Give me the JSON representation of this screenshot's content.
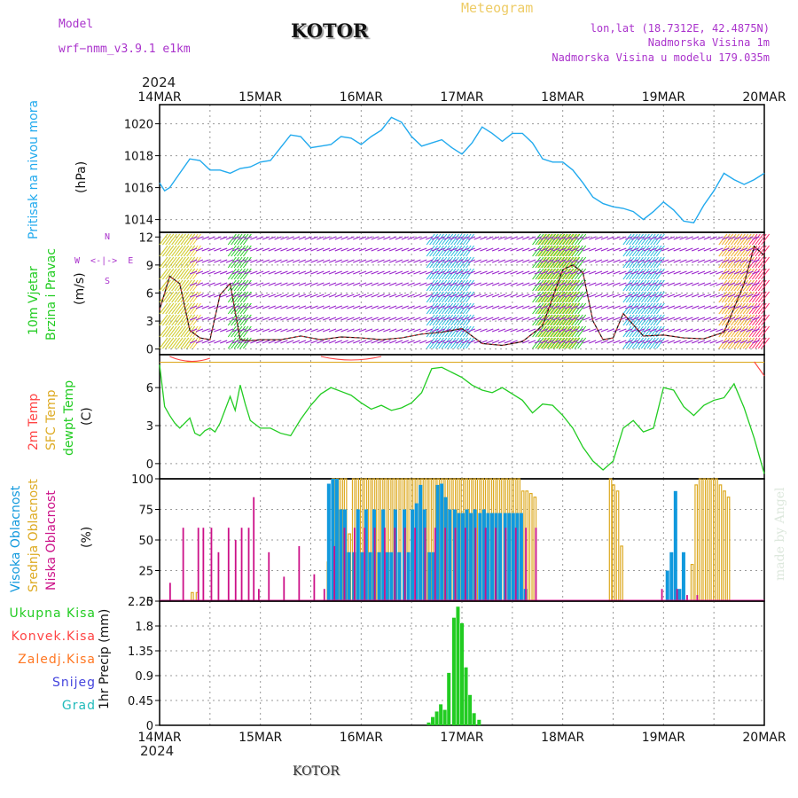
{
  "header": {
    "model_label": "Model",
    "model_name": "wrf−nmm_v3.9.1  e1km",
    "title": "KOTOR",
    "subtitle": "Meteogram",
    "lonlat": "lon,lat (18.7312E, 42.4875N)",
    "elevation": "Nadmorska Visina 1m",
    "model_elevation": "Nadmorska Visina u modelu 179.035m",
    "year_top": "2024",
    "year_bottom": "2024",
    "footer": "KOTOR",
    "credit": "made by Angel"
  },
  "colors": {
    "pressure": "#22aaee",
    "wind_total": "#22cc22",
    "temp2m": "#ff4444",
    "sfc": "#ddaa22",
    "dewpt": "#22cc22",
    "high_cloud": "#1199dd",
    "mid_cloud": "#ddaa22",
    "low_cloud": "#cc1188",
    "model_purple": "#aa33cc",
    "meteogram_orange": "#eecc66"
  },
  "date_ticks": [
    "14MAR",
    "15MAR",
    "16MAR",
    "17MAR",
    "18MAR",
    "19MAR",
    "20MAR"
  ],
  "panels": {
    "pressure": {
      "ylabel_a": "Pritisak na nivou mora",
      "unit": "(hPa)"
    },
    "wind": {
      "ylabel_a": "10m Vjetar",
      "ylabel_b": "Brzina i Pravac",
      "unit": "(m/s)",
      "compass_n": "N",
      "compass_s": "S",
      "compass_e": "E",
      "compass_w": "W",
      "compass_hint": "W  <-|->  E"
    },
    "temp": {
      "label_2m": "2m Temp",
      "label_sfc": "SFC Temp",
      "label_dewpt": "dewpt Temp",
      "unit": "(C)"
    },
    "cloud": {
      "label_high": "Visoka Oblacnost",
      "label_mid": "Srednja Oblacnost",
      "label_low": "Niska Oblacnost",
      "unit": "(%)"
    },
    "precip": {
      "ylabel": "1hr Precip (mm)",
      "legend": [
        {
          "label": "Ukupna Kisa",
          "color": "#22cc22"
        },
        {
          "label": "Konvek.Kisa",
          "color": "#ff4444"
        },
        {
          "label": "Zaledj.Kisa",
          "color": "#ff7722"
        },
        {
          "label": "Snijeg",
          "color": "#4444dd"
        },
        {
          "label": "Grad",
          "color": "#22bbbb"
        }
      ]
    }
  },
  "chart_data": [
    {
      "type": "line",
      "name": "pressure",
      "x_unit": "days after 14MAR 00UTC",
      "ylim": [
        1013.2,
        1021.2
      ],
      "yticks": [
        1014,
        1016,
        1018,
        1020
      ],
      "grid": true,
      "x": [
        0,
        0.05,
        0.1,
        0.2,
        0.3,
        0.4,
        0.5,
        0.6,
        0.7,
        0.8,
        0.9,
        1.0,
        1.1,
        1.2,
        1.3,
        1.4,
        1.5,
        1.6,
        1.7,
        1.8,
        1.9,
        2.0,
        2.1,
        2.2,
        2.3,
        2.4,
        2.5,
        2.6,
        2.7,
        2.8,
        2.9,
        3.0,
        3.1,
        3.2,
        3.3,
        3.4,
        3.5,
        3.6,
        3.7,
        3.8,
        3.9,
        4.0,
        4.1,
        4.2,
        4.3,
        4.4,
        4.5,
        4.6,
        4.7,
        4.8,
        4.9,
        5.0,
        5.1,
        5.2,
        5.3,
        5.4,
        5.5,
        5.6,
        5.7,
        5.8,
        5.9,
        6.0
      ],
      "values": [
        1016.3,
        1015.8,
        1016.0,
        1016.9,
        1017.8,
        1017.7,
        1017.1,
        1017.1,
        1016.9,
        1017.2,
        1017.3,
        1017.6,
        1017.7,
        1018.5,
        1019.3,
        1019.2,
        1018.5,
        1018.6,
        1018.7,
        1019.2,
        1019.1,
        1018.7,
        1019.2,
        1019.6,
        1020.4,
        1020.1,
        1019.2,
        1018.6,
        1018.8,
        1019.0,
        1018.5,
        1018.1,
        1018.8,
        1019.8,
        1019.4,
        1018.9,
        1019.4,
        1019.4,
        1018.8,
        1017.8,
        1017.6,
        1017.6,
        1017.1,
        1016.3,
        1015.4,
        1015.0,
        1014.8,
        1014.7,
        1014.5,
        1014.0,
        1014.5,
        1015.1,
        1014.6,
        1013.9,
        1013.8,
        1014.9,
        1015.8,
        1016.9,
        1016.5,
        1016.2,
        1016.5,
        1016.9
      ]
    },
    {
      "type": "line",
      "name": "wind",
      "x_unit": "days after 14MAR 00UTC",
      "ylim": [
        -0.6,
        12.5
      ],
      "yticks": [
        0,
        3,
        6,
        9,
        12
      ],
      "grid": true,
      "x": [
        0,
        0.1,
        0.2,
        0.3,
        0.4,
        0.5,
        0.6,
        0.7,
        0.8,
        0.9,
        1.0,
        1.2,
        1.4,
        1.6,
        1.8,
        2.0,
        2.2,
        2.4,
        2.6,
        2.8,
        3.0,
        3.2,
        3.4,
        3.6,
        3.8,
        4.0,
        4.1,
        4.2,
        4.3,
        4.4,
        4.5,
        4.6,
        4.8,
        5.0,
        5.2,
        5.4,
        5.6,
        5.8,
        5.9,
        6.0
      ],
      "values": [
        4.2,
        7.8,
        7.0,
        2.0,
        1.2,
        1.0,
        5.8,
        7.0,
        1.0,
        0.9,
        1.0,
        1.0,
        1.4,
        1.0,
        1.3,
        1.2,
        1.0,
        1.2,
        1.6,
        1.8,
        2.2,
        0.6,
        0.4,
        0.8,
        2.5,
        8.5,
        9.0,
        8.2,
        3.0,
        1.0,
        1.2,
        3.8,
        1.4,
        1.5,
        1.2,
        1.1,
        1.8,
        7.0,
        11.0,
        10.0
      ]
    },
    {
      "type": "line",
      "name": "dewpt",
      "x_unit": "days after 14MAR 00UTC",
      "ylim": [
        -1.2,
        8.6
      ],
      "yticks": [
        0,
        3,
        6
      ],
      "grid": true,
      "x": [
        0,
        0.05,
        0.1,
        0.15,
        0.2,
        0.3,
        0.35,
        0.4,
        0.45,
        0.5,
        0.55,
        0.6,
        0.7,
        0.75,
        0.8,
        0.85,
        0.9,
        1.0,
        1.1,
        1.2,
        1.3,
        1.4,
        1.5,
        1.6,
        1.7,
        1.8,
        1.9,
        2.0,
        2.1,
        2.2,
        2.3,
        2.4,
        2.5,
        2.6,
        2.7,
        2.8,
        2.9,
        3.0,
        3.1,
        3.2,
        3.3,
        3.4,
        3.5,
        3.6,
        3.7,
        3.8,
        3.9,
        4.0,
        4.1,
        4.2,
        4.3,
        4.4,
        4.5,
        4.6,
        4.7,
        4.8,
        4.9,
        5.0,
        5.1,
        5.2,
        5.3,
        5.4,
        5.5,
        5.6,
        5.7,
        5.8,
        5.9,
        6.0
      ],
      "values": [
        7.8,
        4.5,
        3.8,
        3.2,
        2.8,
        3.6,
        2.4,
        2.2,
        2.6,
        2.8,
        2.5,
        3.2,
        5.3,
        4.2,
        6.2,
        4.7,
        3.4,
        2.8,
        2.8,
        2.4,
        2.2,
        3.5,
        4.6,
        5.5,
        6.0,
        5.7,
        5.4,
        4.8,
        4.3,
        4.6,
        4.2,
        4.4,
        4.8,
        5.6,
        7.5,
        7.6,
        7.2,
        6.8,
        6.2,
        5.8,
        5.6,
        6.0,
        5.5,
        5.0,
        4.0,
        4.7,
        4.6,
        3.8,
        2.8,
        1.3,
        0.2,
        -0.5,
        0.2,
        2.8,
        3.4,
        2.5,
        2.8,
        6.0,
        5.8,
        4.5,
        3.8,
        4.6,
        5.0,
        5.2,
        6.3,
        4.4,
        2.0,
        -0.8
      ]
    },
    {
      "type": "line",
      "name": "sfc",
      "x_unit": "days after 14MAR 00UTC",
      "ylim": [
        -1.2,
        8.6
      ],
      "x": [
        0,
        6
      ],
      "values": [
        8.0,
        8.0
      ]
    },
    {
      "type": "bar",
      "name": "cloud",
      "x_unit": "days after 14MAR 00UTC",
      "ylim": [
        0,
        100
      ],
      "yticks": [
        0,
        25,
        50,
        75,
        100
      ],
      "grid": true,
      "series": [
        {
          "name": "Visoka Oblacnost",
          "x": [
            1.67,
            1.71,
            1.75,
            1.79,
            1.83,
            1.87,
            1.92,
            1.96,
            2.0,
            2.04,
            2.08,
            2.12,
            2.17,
            2.21,
            2.25,
            2.29,
            2.33,
            2.37,
            2.42,
            2.46,
            2.5,
            2.54,
            2.58,
            2.62,
            2.67,
            2.71,
            2.75,
            2.79,
            2.83,
            2.87,
            2.92,
            2.96,
            3.0,
            3.04,
            3.08,
            3.12,
            3.17,
            3.21,
            3.25,
            3.29,
            3.33,
            3.37,
            3.42,
            3.46,
            3.5,
            3.54,
            3.58,
            3.62,
            5.03,
            5.07,
            5.11,
            5.15,
            5.19
          ],
          "values": [
            96,
            100,
            100,
            75,
            75,
            40,
            40,
            75,
            40,
            75,
            40,
            75,
            40,
            75,
            40,
            40,
            75,
            40,
            75,
            40,
            75,
            80,
            95,
            75,
            40,
            40,
            95,
            96,
            85,
            75,
            75,
            72,
            72,
            75,
            72,
            75,
            72,
            75,
            72,
            72,
            72,
            72,
            72,
            72,
            72,
            72,
            72,
            10,
            25,
            40,
            90,
            10,
            40
          ]
        },
        {
          "name": "Srednja Oblacnost",
          "x": [
            0.3,
            0.35,
            1.65,
            1.7,
            1.74,
            1.78,
            1.82,
            1.86,
            1.9,
            1.94,
            1.98,
            2.02,
            2.06,
            2.1,
            2.14,
            2.18,
            2.22,
            2.26,
            2.3,
            2.34,
            2.38,
            2.42,
            2.46,
            2.5,
            2.54,
            2.58,
            2.62,
            2.66,
            2.7,
            2.74,
            2.78,
            2.82,
            2.86,
            2.9,
            2.94,
            2.98,
            3.02,
            3.06,
            3.1,
            3.14,
            3.18,
            3.22,
            3.26,
            3.3,
            3.34,
            3.38,
            3.42,
            3.46,
            3.5,
            3.54,
            3.58,
            3.62,
            3.66,
            3.7,
            4.45,
            4.48,
            4.52,
            4.56,
            5.26,
            5.3,
            5.34,
            5.38,
            5.42,
            5.46,
            5.5,
            5.54,
            5.58,
            5.62
          ],
          "values": [
            7,
            7,
            32,
            100,
            100,
            100,
            100,
            55,
            100,
            100,
            100,
            100,
            100,
            100,
            100,
            100,
            100,
            100,
            100,
            100,
            100,
            100,
            100,
            100,
            100,
            100,
            100,
            100,
            100,
            100,
            100,
            100,
            100,
            100,
            100,
            100,
            100,
            100,
            100,
            100,
            100,
            100,
            100,
            100,
            100,
            100,
            100,
            100,
            100,
            100,
            90,
            90,
            88,
            85,
            100,
            95,
            90,
            45,
            30,
            95,
            100,
            100,
            100,
            100,
            100,
            95,
            90,
            85
          ]
        },
        {
          "name": "Niska Oblacnost",
          "x": [
            0.07,
            0.2,
            0.35,
            0.4,
            0.48,
            0.55,
            0.65,
            0.72,
            0.78,
            0.85,
            0.9,
            0.95,
            1.05,
            1.2,
            1.35,
            1.5,
            1.6,
            1.7,
            1.8,
            1.9,
            2.0,
            2.1,
            2.2,
            2.3,
            2.4,
            2.5,
            2.6,
            2.7,
            2.8,
            2.9,
            3.0,
            3.1,
            3.2,
            3.3,
            3.4,
            3.5,
            3.6,
            3.7,
            4.95,
            5.1,
            5.2,
            5.3
          ],
          "values": [
            15,
            60,
            60,
            60,
            60,
            40,
            60,
            50,
            60,
            60,
            85,
            10,
            40,
            20,
            45,
            22,
            10,
            45,
            60,
            60,
            60,
            60,
            60,
            60,
            60,
            60,
            60,
            60,
            60,
            60,
            60,
            60,
            60,
            60,
            60,
            60,
            60,
            60,
            10,
            10,
            5,
            5
          ]
        }
      ]
    },
    {
      "type": "bar",
      "name": "precip",
      "x_unit": "days after 14MAR 00UTC",
      "ylim": [
        0,
        2.25
      ],
      "yticks": [
        0,
        0.45,
        0.9,
        1.35,
        1.8,
        2.25
      ],
      "grid": true,
      "series": [
        {
          "name": "Ukupna Kisa",
          "x": [
            2.67,
            2.71,
            2.75,
            2.79,
            2.83,
            2.87,
            2.92,
            2.96,
            3.0,
            3.04,
            3.08,
            3.12,
            3.17
          ],
          "values": [
            0.05,
            0.15,
            0.25,
            0.38,
            0.28,
            0.95,
            1.95,
            2.15,
            1.85,
            1.05,
            0.55,
            0.22,
            0.1
          ]
        }
      ]
    }
  ]
}
